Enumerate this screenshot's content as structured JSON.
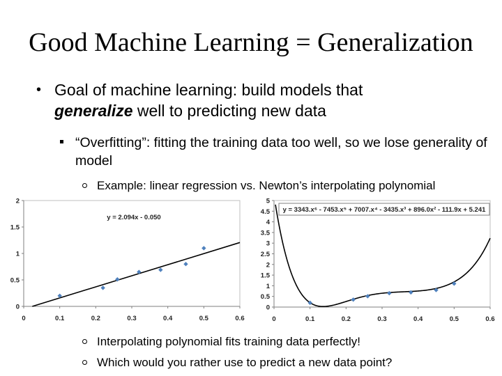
{
  "title": "Good Machine Learning = Generalization",
  "bullet1": {
    "prefix": "Goal of machine learning: build models that",
    "emphasis": "generalize",
    "suffix": "well to predicting new data"
  },
  "bullet2": {
    "text": "“Overfitting”: fitting the training data too well, so we lose generality of model"
  },
  "bullet3": {
    "text": "Example: linear regression vs. Newton’s interpolating polynomial"
  },
  "bullet4": {
    "text": "Interpolating polynomial fits training data perfectly!"
  },
  "bullet5": {
    "text": "Which would you rather use to predict a new data point?"
  },
  "chart_data": [
    {
      "type": "scatter",
      "title": "",
      "xlabel": "",
      "ylabel": "",
      "xlim": [
        0,
        0.6
      ],
      "ylim": [
        0,
        2
      ],
      "x_ticks": [
        "0",
        "0.1",
        "0.2",
        "0.3",
        "0.4",
        "0.5",
        "0.6"
      ],
      "y_ticks": [
        "0",
        "0.5",
        "1",
        "1.5",
        "2"
      ],
      "points": {
        "x": [
          0.1,
          0.22,
          0.26,
          0.32,
          0.38,
          0.45,
          0.5
        ],
        "y": [
          0.2,
          0.35,
          0.51,
          0.65,
          0.69,
          0.8,
          1.1
        ]
      },
      "trendline": {
        "kind": "linear",
        "equation": "y = 2.094x - 0.050",
        "slope": 2.094,
        "intercept": -0.05
      },
      "grid": false,
      "marker_color": "#4f81bd",
      "line_color": "#000000"
    },
    {
      "type": "scatter",
      "title": "",
      "xlabel": "",
      "ylabel": "",
      "xlim": [
        0,
        0.6
      ],
      "ylim": [
        0,
        5
      ],
      "x_ticks": [
        "0",
        "0.1",
        "0.2",
        "0.3",
        "0.4",
        "0.5",
        "0.6"
      ],
      "y_ticks": [
        "0",
        "0.5",
        "1",
        "1.5",
        "2",
        "2.5",
        "3",
        "3.5",
        "4",
        "4.5",
        "5"
      ],
      "points": {
        "x": [
          0.1,
          0.22,
          0.26,
          0.32,
          0.38,
          0.45,
          0.5
        ],
        "y": [
          0.2,
          0.35,
          0.51,
          0.65,
          0.69,
          0.8,
          1.1
        ]
      },
      "trendline": {
        "kind": "polynomial",
        "equation": "y = 3343.x⁶ - 7453.x⁵ + 7007.x⁴ - 3435.x³ + 896.0x² - 111.9x + 5.241"
      },
      "grid": false,
      "marker_color": "#4f81bd",
      "line_color": "#000000"
    }
  ]
}
